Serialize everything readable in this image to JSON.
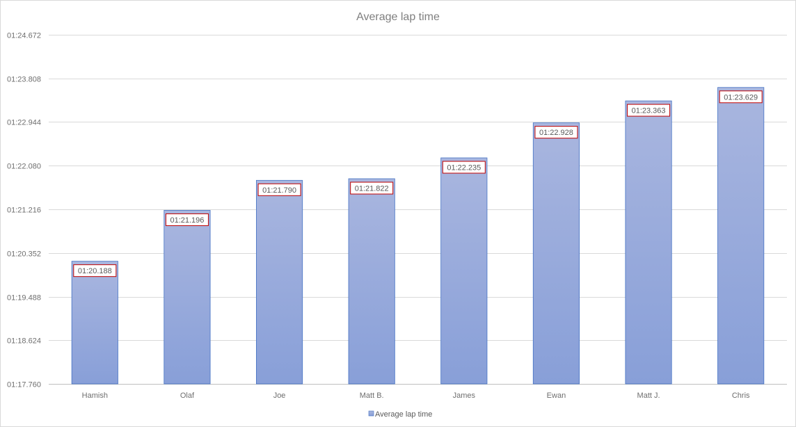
{
  "chart_data": {
    "type": "bar",
    "title": "Average lap time",
    "categories": [
      "Hamish",
      "Olaf",
      "Joe",
      "Matt B.",
      "James",
      "Ewan",
      "Matt J.",
      "Chris"
    ],
    "series": [
      {
        "name": "Average lap time",
        "values": [
          80.188,
          81.196,
          81.79,
          81.822,
          82.235,
          82.928,
          83.363,
          83.629
        ],
        "labels": [
          "01:20.188",
          "01:21.196",
          "01:21.790",
          "01:21.822",
          "01:22.235",
          "01:22.928",
          "01:23.363",
          "01:23.629"
        ]
      }
    ],
    "ylim": [
      77.76,
      84.672
    ],
    "y_ticks": [
      77.76,
      78.624,
      79.488,
      80.352,
      81.216,
      82.08,
      82.944,
      83.808,
      84.672
    ],
    "y_tick_labels": [
      "01:17.760",
      "01:18.624",
      "01:19.488",
      "01:20.352",
      "01:21.216",
      "01:22.080",
      "01:22.944",
      "01:23.808",
      "01:24.672"
    ],
    "xlabel": "",
    "ylabel": "",
    "grid": true,
    "legend": "bottom",
    "colors": {
      "bar_top": "#a9b6df",
      "bar_bottom": "#889fd8",
      "bar_border": "#4472c4",
      "data_label_border": "#c00000",
      "gridline": "#d9d9d9",
      "axis": "#bfbfbf"
    }
  }
}
